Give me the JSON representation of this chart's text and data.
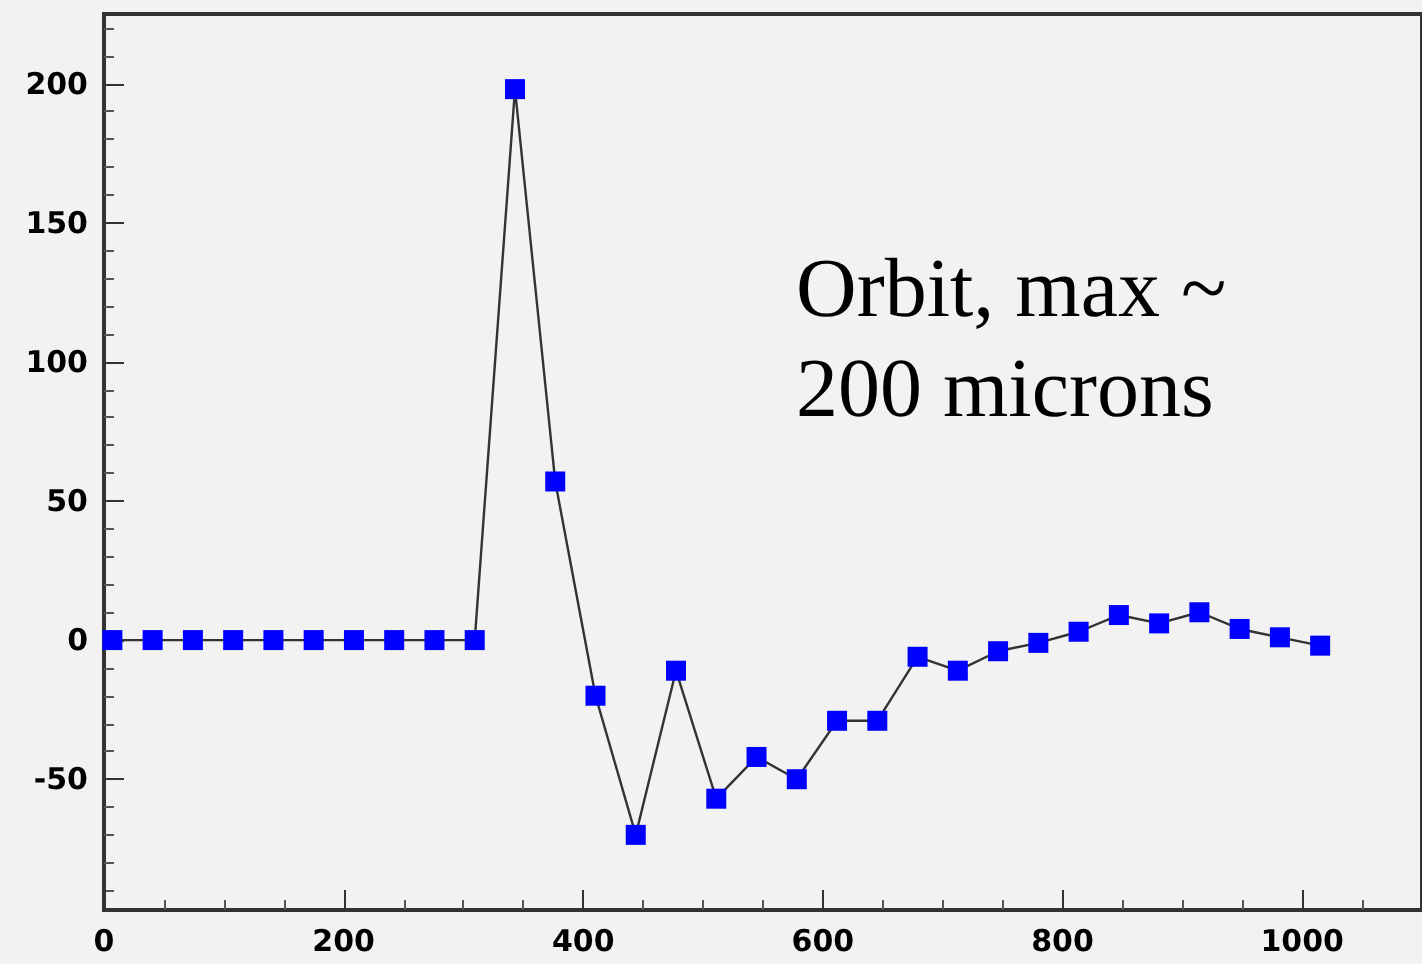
{
  "chart_data": {
    "type": "line",
    "marker": "square",
    "line_style": "solid",
    "grid": false,
    "x": [
      7,
      40.6,
      74.2,
      107.8,
      141.4,
      175,
      208.6,
      242.2,
      275.8,
      309.4,
      343,
      376.6,
      410.2,
      443.8,
      477.4,
      511,
      544.6,
      578.2,
      611.8,
      645.4,
      679,
      712.6,
      746.2,
      779.8,
      813.4,
      847,
      880.6,
      914.2,
      947.8,
      981.4,
      1015
    ],
    "series": [
      {
        "color": "#0000ff",
        "values": [
          0,
          0,
          0,
          0,
          0,
          0,
          0,
          0,
          0,
          0,
          198,
          57,
          -20,
          -70,
          -11,
          -57,
          -42,
          -50,
          -29,
          -29,
          -6,
          -11,
          -4,
          -1,
          3,
          9,
          6,
          10,
          4,
          1,
          -2
        ]
      }
    ],
    "xlim": [
      0,
      1100
    ],
    "xticks": [
      0,
      200,
      400,
      600,
      800,
      1000
    ],
    "ylim": [
      -97,
      225
    ],
    "yticks": [
      -50,
      0,
      50,
      100,
      150,
      200
    ],
    "annotations": [
      "Orbit, max ~ 200 microns"
    ]
  }
}
